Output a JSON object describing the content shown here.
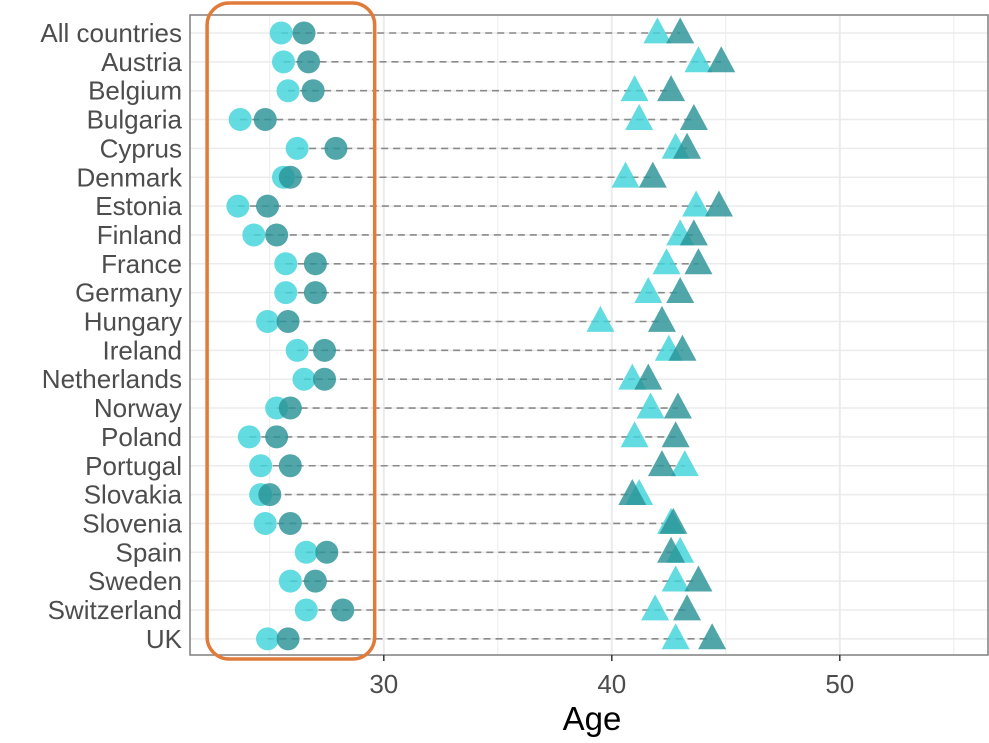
{
  "chart_data": {
    "type": "scatter",
    "title": "",
    "xlabel": "Age",
    "ylabel": "",
    "xlim": [
      21.5,
      56.5
    ],
    "xticks": [
      30,
      40,
      50
    ],
    "grid": true,
    "categories": [
      "All countries",
      "Austria",
      "Belgium",
      "Bulgaria",
      "Cyprus",
      "Denmark",
      "Estonia",
      "Finland",
      "France",
      "Germany",
      "Hungary",
      "Ireland",
      "Netherlands",
      "Norway",
      "Poland",
      "Portugal",
      "Slovakia",
      "Slovenia",
      "Spain",
      "Sweden",
      "Switzerland",
      "UK"
    ],
    "series": [
      {
        "marker": "circle",
        "color": "#3fd3db",
        "values": [
          25.5,
          25.6,
          25.8,
          23.7,
          26.2,
          25.6,
          23.6,
          24.3,
          25.7,
          25.7,
          24.9,
          26.2,
          26.5,
          25.3,
          24.1,
          24.6,
          24.6,
          24.8,
          26.6,
          25.9,
          26.6,
          24.9
        ]
      },
      {
        "marker": "circle",
        "color": "#2a9296",
        "values": [
          26.5,
          26.7,
          26.9,
          24.8,
          27.9,
          25.9,
          24.9,
          25.3,
          27.0,
          27.0,
          25.8,
          27.4,
          27.4,
          25.9,
          25.3,
          25.9,
          25.0,
          25.9,
          27.5,
          27.0,
          28.2,
          25.8
        ]
      },
      {
        "marker": "triangle",
        "color": "#3fd3db",
        "values": [
          42.0,
          43.8,
          41.0,
          41.2,
          42.8,
          40.6,
          43.7,
          43.0,
          42.4,
          41.6,
          39.5,
          42.5,
          40.9,
          41.7,
          41.0,
          43.2,
          41.2,
          42.6,
          43.0,
          42.8,
          41.9,
          42.8
        ]
      },
      {
        "marker": "triangle",
        "color": "#2a9296",
        "values": [
          43.0,
          44.8,
          42.6,
          43.6,
          43.3,
          41.8,
          44.7,
          43.6,
          43.8,
          43.0,
          42.2,
          43.1,
          41.6,
          42.9,
          42.8,
          42.2,
          40.9,
          42.7,
          42.6,
          43.8,
          43.3,
          44.4
        ]
      }
    ]
  },
  "annotation": {
    "color": "#e07b39"
  },
  "colors": {
    "axis_text": "#4d4d4d",
    "grid": "#ebebeb",
    "panel_border": "#7f7f7f",
    "segment": "#8a8a8a"
  }
}
